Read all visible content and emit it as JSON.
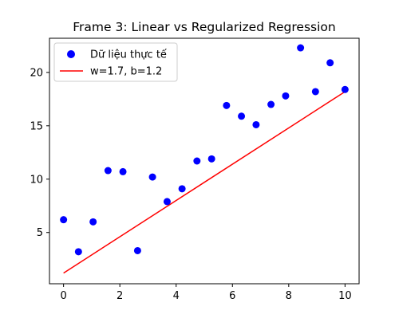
{
  "chart_data": {
    "type": "scatter",
    "title": "Frame 3: Linear vs Regularized Regression",
    "xlabel": "",
    "ylabel": "",
    "xlim": [
      -0.5,
      10.5
    ],
    "ylim": [
      0.2,
      23.2
    ],
    "x_ticks": [
      "0",
      "2",
      "4",
      "6",
      "8",
      "10"
    ],
    "y_ticks": [
      "5",
      "10",
      "15",
      "20"
    ],
    "grid": false,
    "legend_position": "upper-left",
    "series": [
      {
        "name": "Dữ liệu thực tế",
        "kind": "scatter",
        "color": "#0000ff",
        "points": [
          [
            0.0,
            6.2
          ],
          [
            0.53,
            3.2
          ],
          [
            1.05,
            6.0
          ],
          [
            1.58,
            10.8
          ],
          [
            2.11,
            10.7
          ],
          [
            2.63,
            3.3
          ],
          [
            3.16,
            10.2
          ],
          [
            3.68,
            7.9
          ],
          [
            4.21,
            9.1
          ],
          [
            4.74,
            11.7
          ],
          [
            5.26,
            11.9
          ],
          [
            5.79,
            16.9
          ],
          [
            6.32,
            15.9
          ],
          [
            6.84,
            15.1
          ],
          [
            7.37,
            17.0
          ],
          [
            7.89,
            17.8
          ],
          [
            8.42,
            22.3
          ],
          [
            8.95,
            18.2
          ],
          [
            9.47,
            20.9
          ],
          [
            10.0,
            18.4
          ]
        ]
      },
      {
        "name": "w=1.7, b=1.2",
        "kind": "line",
        "color": "#ff0000",
        "points": [
          [
            0,
            1.2
          ],
          [
            10,
            18.2
          ]
        ]
      }
    ]
  }
}
